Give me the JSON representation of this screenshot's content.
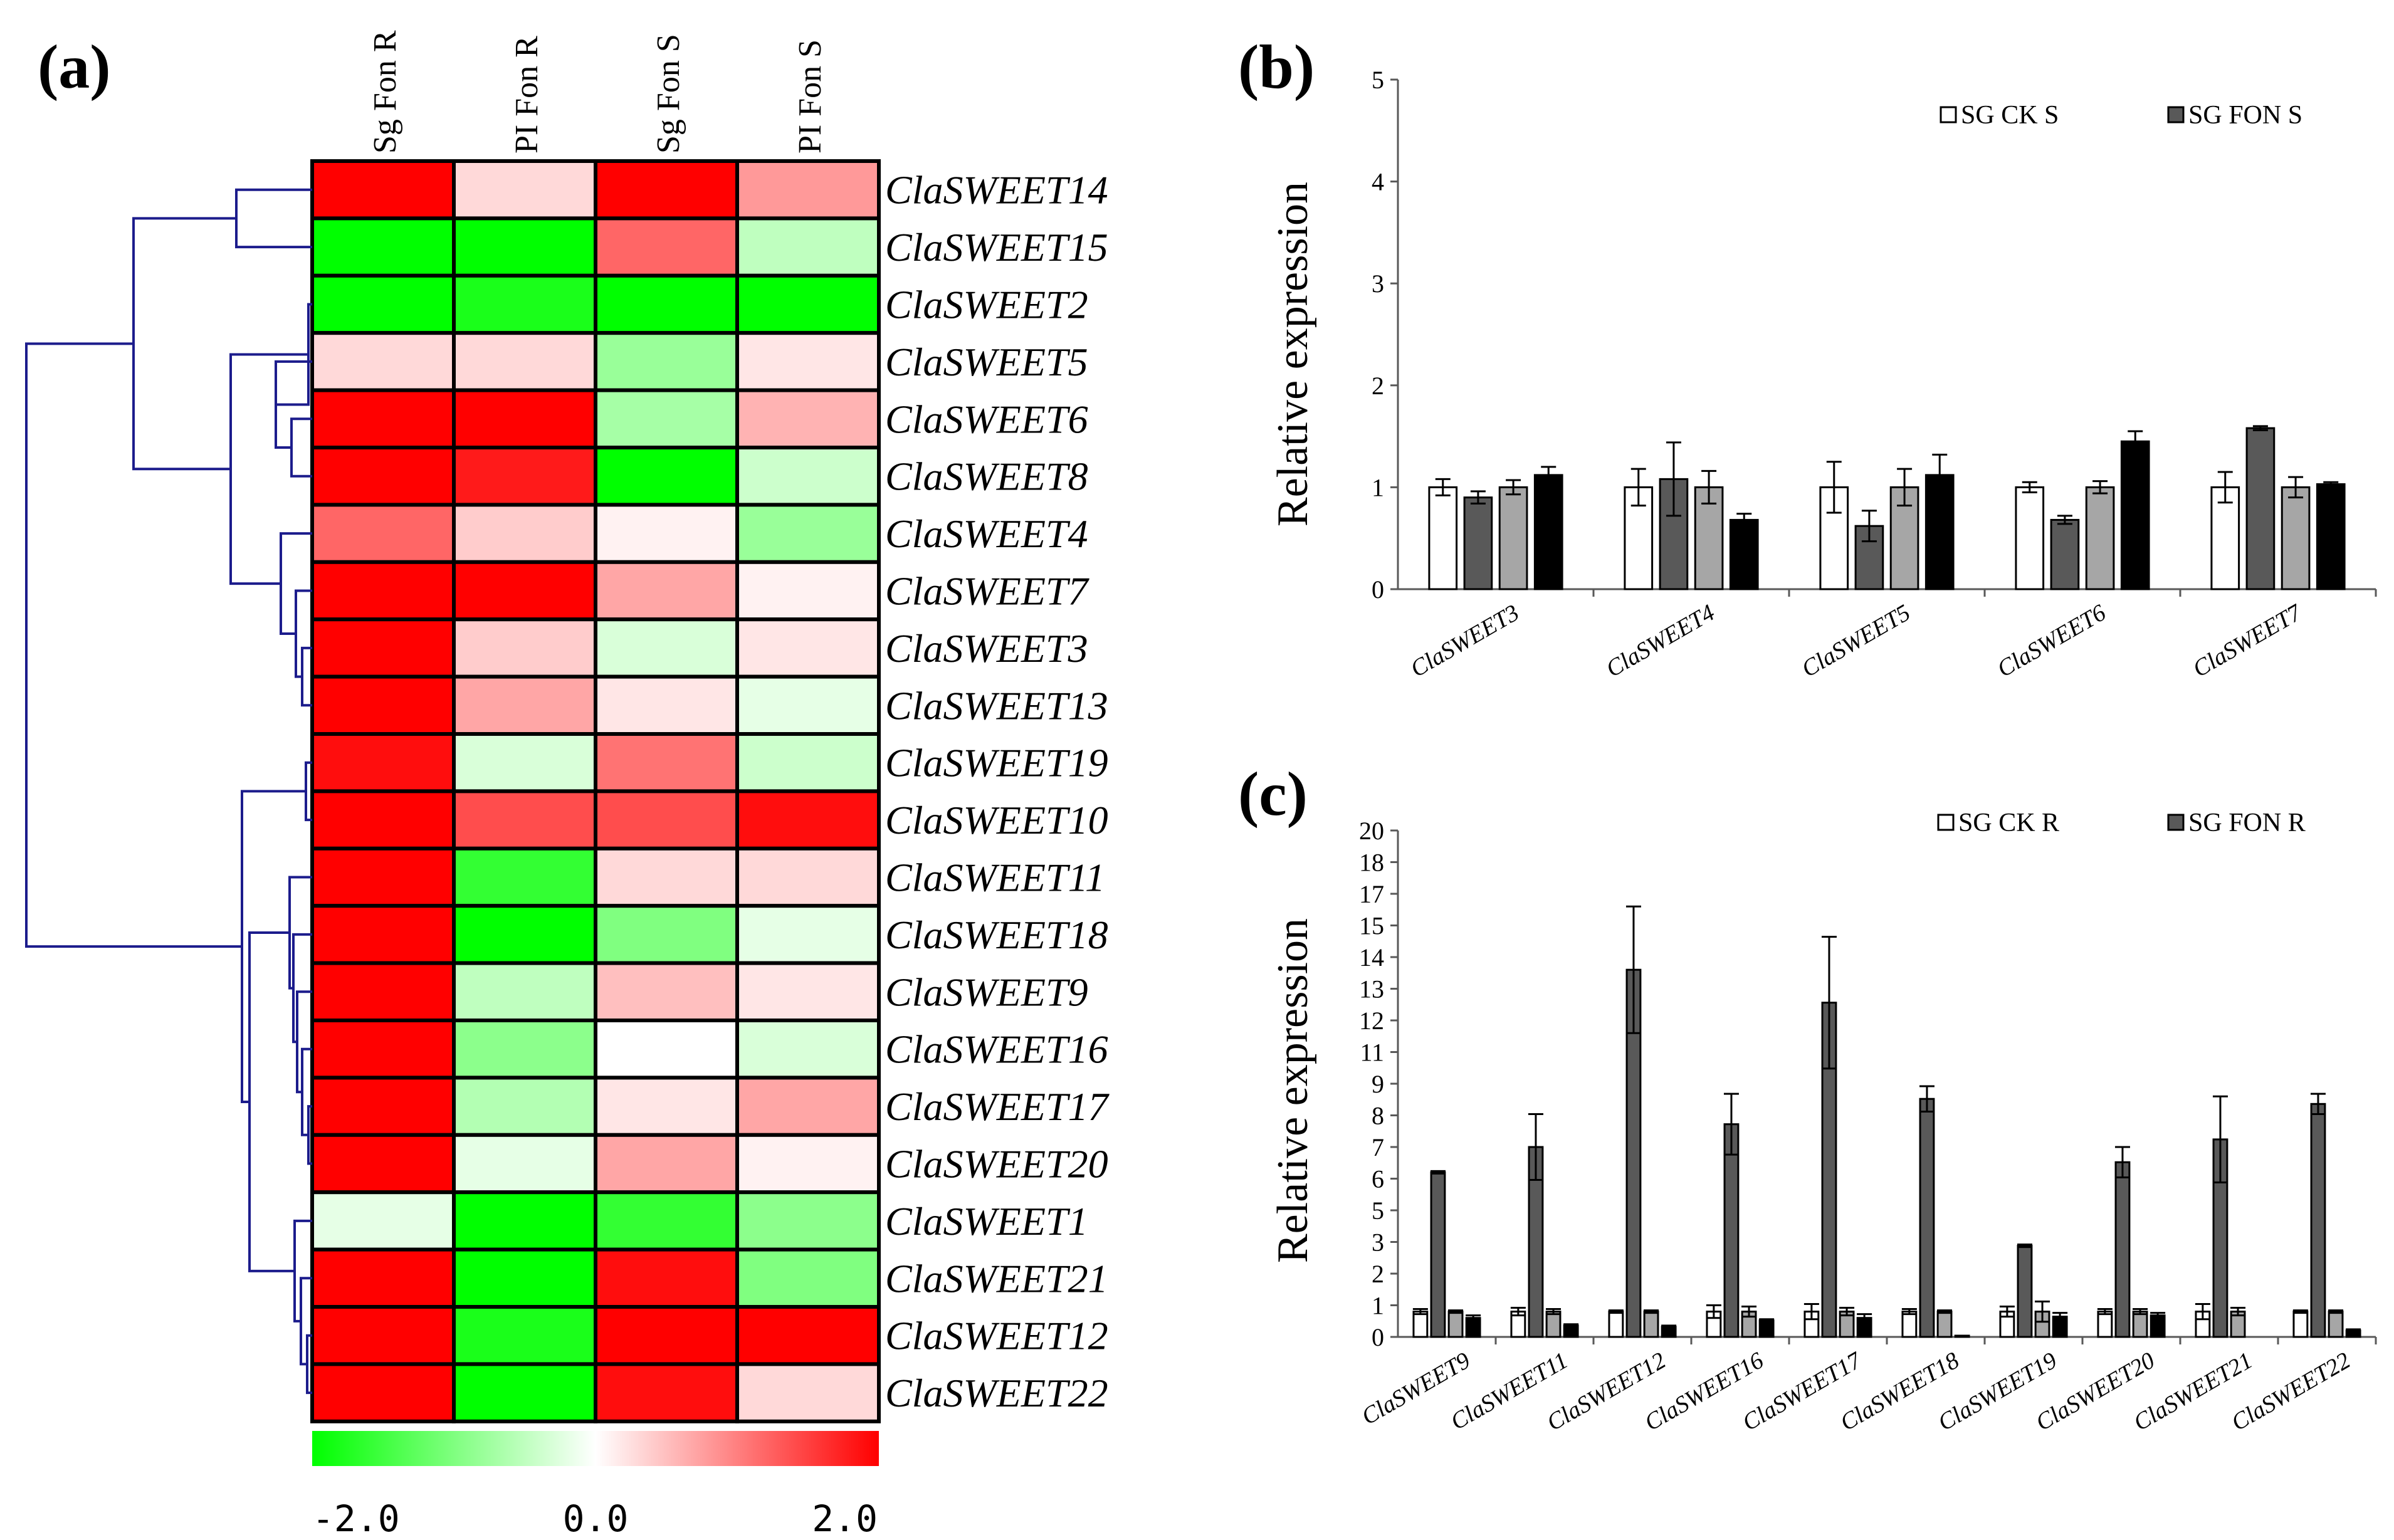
{
  "chart_data": [
    {
      "panel": "(a)",
      "type": "heatmap",
      "columns": [
        "Sg Fon R",
        "PI Fon R",
        "Sg Fon S",
        "PI Fon S"
      ],
      "rows": [
        "ClaSWEET14",
        "ClaSWEET15",
        "ClaSWEET2",
        "ClaSWEET5",
        "ClaSWEET6",
        "ClaSWEET8",
        "ClaSWEET4",
        "ClaSWEET7",
        "ClaSWEET3",
        "ClaSWEET13",
        "ClaSWEET19",
        "ClaSWEET10",
        "ClaSWEET11",
        "ClaSWEET18",
        "ClaSWEET9",
        "ClaSWEET16",
        "ClaSWEET17",
        "ClaSWEET20",
        "ClaSWEET1",
        "ClaSWEET21",
        "ClaSWEET12",
        "ClaSWEET22"
      ],
      "values": [
        [
          2.0,
          0.3,
          2.0,
          0.8
        ],
        [
          -2.0,
          -2.0,
          1.2,
          -0.5
        ],
        [
          -2.0,
          -1.8,
          -2.0,
          -2.0
        ],
        [
          0.3,
          0.3,
          -0.8,
          0.2
        ],
        [
          2.0,
          2.0,
          -0.7,
          0.6
        ],
        [
          2.0,
          1.8,
          -2.0,
          -0.4
        ],
        [
          1.2,
          0.4,
          0.1,
          -0.8
        ],
        [
          2.0,
          2.0,
          0.7,
          0.1
        ],
        [
          2.0,
          0.4,
          -0.3,
          0.2
        ],
        [
          2.0,
          0.7,
          0.2,
          -0.2
        ],
        [
          1.9,
          -0.3,
          1.1,
          -0.4
        ],
        [
          2.0,
          1.4,
          1.4,
          1.9
        ],
        [
          2.0,
          -1.6,
          0.3,
          0.3
        ],
        [
          2.0,
          -2.0,
          -1.0,
          -0.2
        ],
        [
          2.0,
          -0.5,
          0.5,
          0.2
        ],
        [
          2.0,
          -0.9,
          0.0,
          -0.3
        ],
        [
          2.0,
          -0.6,
          0.2,
          0.7
        ],
        [
          2.0,
          -0.2,
          0.7,
          0.1
        ],
        [
          -0.2,
          -2.0,
          -1.6,
          -0.9
        ],
        [
          2.0,
          -2.0,
          1.9,
          -1.0
        ],
        [
          2.0,
          -1.8,
          2.0,
          2.0
        ],
        [
          2.0,
          -2.0,
          1.9,
          0.3
        ]
      ],
      "colorbar": {
        "min_label": "-2.0",
        "mid_label": "0.0",
        "max_label": "2.0",
        "low_color": "#00ff00",
        "mid_color": "#ffffff",
        "high_color": "#ff0000"
      },
      "dendrogram_color": "#1c1c8c"
    },
    {
      "panel": "(b)",
      "type": "bar",
      "ylabel": "Relative expression",
      "ylim": [
        0,
        5
      ],
      "yticks": [
        "0",
        "1",
        "2",
        "3",
        "4",
        "5"
      ],
      "categories": [
        "ClaSWEET3",
        "ClaSWEET4",
        "ClaSWEET5",
        "ClaSWEET6",
        "ClaSWEET7"
      ],
      "legend": [
        "SG CK S",
        "SG FON S"
      ],
      "series": [
        {
          "name": "SG CK S",
          "color": "#ffffff",
          "values": [
            1.0,
            1.0,
            1.0,
            1.0,
            1.0
          ],
          "errors": [
            0.08,
            0.18,
            0.25,
            0.05,
            0.15
          ]
        },
        {
          "name": "SG FON S",
          "color": "#595959",
          "values": [
            0.9,
            1.08,
            0.62,
            0.68,
            1.58
          ],
          "errors": [
            0.06,
            0.36,
            0.15,
            0.04,
            0.02
          ]
        },
        {
          "color": "#a6a6a6",
          "values": [
            1.0,
            1.0,
            1.0,
            1.0,
            1.0
          ],
          "errors": [
            0.07,
            0.16,
            0.18,
            0.06,
            0.1
          ]
        },
        {
          "color": "#000000",
          "values": [
            1.12,
            0.68,
            1.12,
            1.45,
            1.03
          ],
          "errors": [
            0.08,
            0.06,
            0.2,
            0.1,
            0.02
          ]
        }
      ]
    },
    {
      "panel": "(c)",
      "type": "bar",
      "ylabel": "Relative expression",
      "ylim": [
        0,
        20
      ],
      "yticks": [
        "0",
        "1",
        "2",
        "3",
        "5",
        "6",
        "7",
        "8",
        "9",
        "11",
        "12",
        "13",
        "14",
        "15",
        "17",
        "18",
        "20"
      ],
      "categories": [
        "ClaSWEET9",
        "ClaSWEET11",
        "ClaSWEET12",
        "ClaSWEET16",
        "ClaSWEET17",
        "ClaSWEET18",
        "ClaSWEET19",
        "ClaSWEET20",
        "ClaSWEET21",
        "ClaSWEET22"
      ],
      "legend": [
        "SG CK R",
        "SG FON R"
      ],
      "series": [
        {
          "name": "SG CK R",
          "color": "#ffffff",
          "values": [
            1.0,
            1.0,
            1.0,
            1.0,
            1.0,
            1.0,
            1.0,
            1.0,
            1.0,
            1.0
          ],
          "errors": [
            0.1,
            0.15,
            0.05,
            0.25,
            0.3,
            0.1,
            0.2,
            0.1,
            0.3,
            0.05
          ]
        },
        {
          "name": "SG FON R",
          "color": "#595959",
          "values": [
            6.5,
            7.5,
            14.5,
            8.4,
            13.2,
            9.4,
            3.6,
            6.9,
            7.8,
            9.2
          ],
          "errors": [
            0.05,
            1.3,
            2.5,
            1.2,
            2.6,
            0.5,
            0.05,
            0.6,
            1.7,
            0.4
          ]
        },
        {
          "color": "#a6a6a6",
          "values": [
            1.0,
            1.0,
            1.0,
            1.0,
            1.0,
            1.0,
            1.0,
            1.0,
            1.0,
            1.0
          ],
          "errors": [
            0.05,
            0.1,
            0.05,
            0.2,
            0.15,
            0.05,
            0.4,
            0.1,
            0.15,
            0.05
          ]
        },
        {
          "color": "#000000",
          "values": [
            0.75,
            0.45,
            0.4,
            0.65,
            0.75,
            0.05,
            0.8,
            0.85,
            0.0,
            0.25
          ],
          "errors": [
            0.1,
            0.05,
            0.05,
            0.05,
            0.15,
            0.0,
            0.15,
            0.1,
            0.0,
            0.05
          ]
        }
      ]
    }
  ]
}
